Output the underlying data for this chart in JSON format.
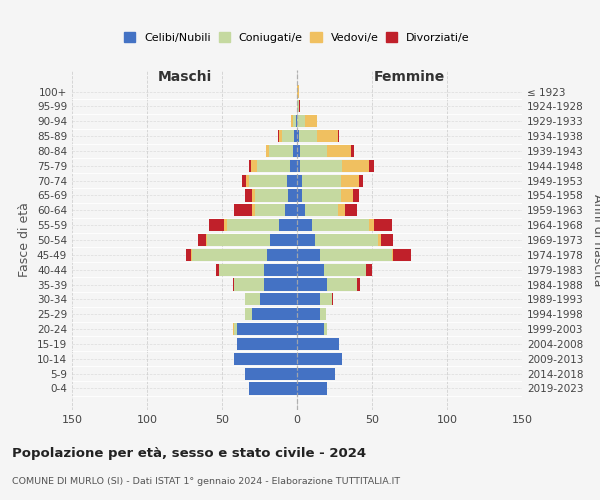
{
  "age_groups": [
    "0-4",
    "5-9",
    "10-14",
    "15-19",
    "20-24",
    "25-29",
    "30-34",
    "35-39",
    "40-44",
    "45-49",
    "50-54",
    "55-59",
    "60-64",
    "65-69",
    "70-74",
    "75-79",
    "80-84",
    "85-89",
    "90-94",
    "95-99",
    "100+"
  ],
  "birth_years": [
    "2019-2023",
    "2014-2018",
    "2009-2013",
    "2004-2008",
    "1999-2003",
    "1994-1998",
    "1989-1993",
    "1984-1988",
    "1979-1983",
    "1974-1978",
    "1969-1973",
    "1964-1968",
    "1959-1963",
    "1954-1958",
    "1949-1953",
    "1944-1948",
    "1939-1943",
    "1934-1938",
    "1929-1933",
    "1924-1928",
    "≤ 1923"
  ],
  "colors": {
    "celibi": "#4472c4",
    "coniugati": "#c5d9a0",
    "vedovi": "#f0c060",
    "divorziati": "#c0202a"
  },
  "maschi": {
    "celibi": [
      32,
      35,
      42,
      40,
      40,
      30,
      25,
      22,
      22,
      20,
      18,
      12,
      8,
      6,
      7,
      5,
      3,
      2,
      1,
      0,
      0
    ],
    "coniugati": [
      0,
      0,
      0,
      0,
      2,
      5,
      10,
      20,
      30,
      50,
      42,
      35,
      20,
      22,
      25,
      22,
      16,
      8,
      2,
      0,
      0
    ],
    "vedovi": [
      0,
      0,
      0,
      0,
      1,
      0,
      0,
      0,
      0,
      1,
      1,
      2,
      2,
      2,
      2,
      4,
      2,
      2,
      1,
      0,
      0
    ],
    "divorziati": [
      0,
      0,
      0,
      0,
      0,
      0,
      0,
      1,
      2,
      3,
      5,
      10,
      12,
      5,
      3,
      1,
      0,
      1,
      0,
      0,
      0
    ]
  },
  "femmine": {
    "celibi": [
      20,
      25,
      30,
      28,
      18,
      15,
      15,
      20,
      18,
      15,
      12,
      10,
      5,
      3,
      3,
      2,
      2,
      1,
      0,
      0,
      0
    ],
    "coniugati": [
      0,
      0,
      0,
      0,
      2,
      4,
      8,
      20,
      28,
      48,
      42,
      38,
      22,
      26,
      26,
      28,
      18,
      12,
      5,
      1,
      0
    ],
    "vedovi": [
      0,
      0,
      0,
      0,
      0,
      0,
      0,
      0,
      0,
      1,
      2,
      3,
      5,
      8,
      12,
      18,
      16,
      14,
      8,
      0,
      1
    ],
    "divorziati": [
      0,
      0,
      0,
      0,
      0,
      0,
      1,
      2,
      4,
      12,
      8,
      12,
      8,
      4,
      3,
      3,
      2,
      1,
      0,
      1,
      0
    ]
  },
  "xlim": 150,
  "title": "Popolazione per età, sesso e stato civile - 2024",
  "subtitle": "COMUNE DI MURLO (SI) - Dati ISTAT 1° gennaio 2024 - Elaborazione TUTTITALIA.IT",
  "ylabel_left": "Fasce di età",
  "ylabel_right": "Anni di nascita",
  "xlabel_maschi": "Maschi",
  "xlabel_femmine": "Femmine",
  "legend_labels": [
    "Celibi/Nubili",
    "Coniugati/e",
    "Vedovi/e",
    "Divorziati/e"
  ],
  "bg_color": "#f5f5f5",
  "grid_color": "#cccccc"
}
